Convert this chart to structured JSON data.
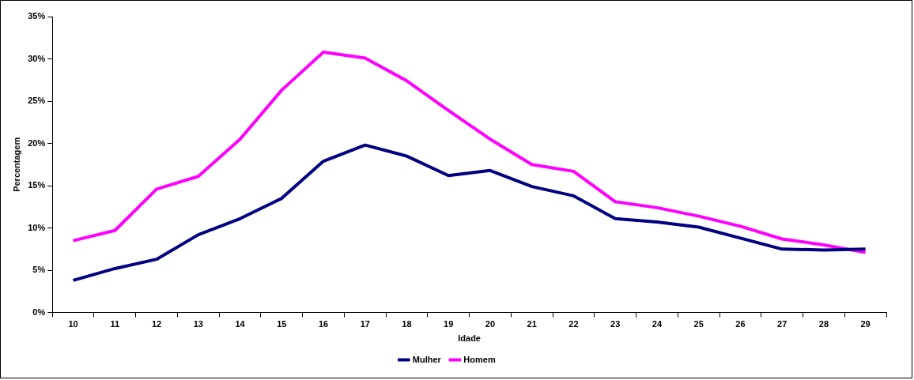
{
  "chart_data": {
    "type": "line",
    "xlabel": "Idade",
    "ylabel": "Percentagem",
    "categories": [
      "10",
      "11",
      "12",
      "13",
      "14",
      "15",
      "16",
      "17",
      "18",
      "19",
      "20",
      "21",
      "22",
      "23",
      "24",
      "25",
      "26",
      "27",
      "28",
      "29"
    ],
    "series": [
      {
        "name": "Mulher",
        "color": "#000080",
        "values": [
          3.8,
          5.2,
          6.3,
          9.2,
          11.1,
          13.5,
          17.9,
          19.8,
          18.5,
          16.2,
          16.8,
          14.9,
          13.8,
          11.1,
          10.7,
          10.1,
          8.8,
          7.5,
          7.4,
          7.5
        ]
      },
      {
        "name": "Homem",
        "color": "#ff00ff",
        "values": [
          8.5,
          9.7,
          14.6,
          16.1,
          20.5,
          26.3,
          30.8,
          30.1,
          27.4,
          23.9,
          20.5,
          17.5,
          16.7,
          13.1,
          12.4,
          11.4,
          10.2,
          8.7,
          8.0,
          7.1
        ]
      }
    ],
    "ylim": [
      0,
      35
    ],
    "yticks": [
      {
        "value": 0,
        "label": "0%"
      },
      {
        "value": 5,
        "label": "5%"
      },
      {
        "value": 10,
        "label": "10%"
      },
      {
        "value": 15,
        "label": "15%"
      },
      {
        "value": 20,
        "label": "20%"
      },
      {
        "value": 25,
        "label": "25%"
      },
      {
        "value": 30,
        "label": "30%"
      },
      {
        "value": 35,
        "label": "35%"
      }
    ],
    "grid": false,
    "legend": "bottom",
    "marker": "none",
    "line_style": "solid"
  }
}
